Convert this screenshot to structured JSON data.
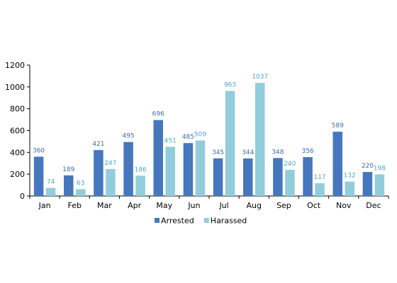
{
  "chart_data": {
    "type": "bar",
    "categories": [
      "Jan",
      "Feb",
      "Mar",
      "Apr",
      "May",
      "Jun",
      "Jul",
      "Aug",
      "Sep",
      "Oct",
      "Nov",
      "Dec"
    ],
    "series": [
      {
        "name": "Arrested",
        "color": "#4677BE",
        "label_color": "#3E6BB0",
        "values": [
          360,
          189,
          421,
          495,
          696,
          485,
          345,
          344,
          348,
          356,
          589,
          220
        ]
      },
      {
        "name": "Harassed",
        "color": "#92CDDC",
        "label_color": "#4FA7C9",
        "values": [
          74,
          63,
          247,
          186,
          451,
          509,
          963,
          1037,
          240,
          117,
          132,
          198
        ]
      }
    ],
    "ylim": [
      0,
      1200
    ],
    "yticks": [
      0,
      200,
      400,
      600,
      800,
      1000,
      1200
    ],
    "grid": false,
    "legend": "bottom",
    "data_labels": true
  }
}
